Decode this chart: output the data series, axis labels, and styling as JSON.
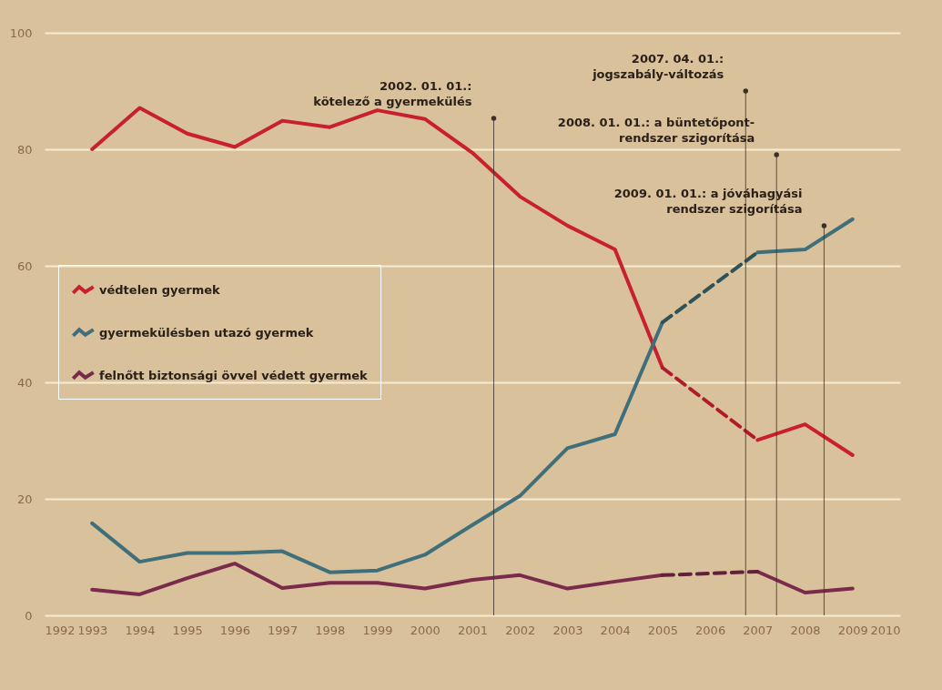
{
  "chart_data": {
    "type": "line",
    "x": [
      1993,
      1994,
      1995,
      1996,
      1997,
      1998,
      1999,
      2000,
      2001,
      2002,
      2003,
      2004,
      2005,
      2006,
      2007,
      2008,
      2009
    ],
    "series": [
      {
        "name": "védtelen gyermek",
        "color": "#c8202f",
        "line_style": "solid",
        "values": [
          80,
          87.1,
          82.7,
          80.4,
          84.9,
          83.8,
          86.7,
          85.2,
          79.4,
          71.9,
          66.9,
          62.8,
          42.5,
          null,
          30.1,
          32.8,
          27.5
        ]
      },
      {
        "name": "gyermekülésben utazó gyermek",
        "color": "#3f6f7a",
        "line_style": "solid",
        "values": [
          15.8,
          9.2,
          10.7,
          10.7,
          11,
          7.4,
          7.7,
          10.4,
          15.5,
          20.5,
          28.7,
          31.1,
          50.3,
          null,
          62.3,
          62.8,
          68
        ]
      },
      {
        "name": "felnőtt biztonsági övvel védett gyermek",
        "color": "#7a2a4a",
        "line_style": "solid",
        "values": [
          4.4,
          3.6,
          6.4,
          8.9,
          4.7,
          5.6,
          5.6,
          4.6,
          6.1,
          6.9,
          4.6,
          5.8,
          6.9,
          null,
          7.5,
          3.9,
          4.6
        ]
      },
      {
        "type": "line",
        "color": "#b01a2a",
        "line_style": "dashed",
        "values": [
          null,
          null,
          null,
          null,
          null,
          null,
          null,
          null,
          null,
          null,
          null,
          null,
          42.5,
          null,
          30.1,
          null,
          null
        ]
      },
      {
        "type": "line",
        "color": "#2f5259",
        "line_style": "dashed",
        "values": [
          null,
          null,
          null,
          null,
          null,
          null,
          null,
          null,
          null,
          null,
          null,
          null,
          50.3,
          null,
          62.3,
          null,
          null
        ]
      },
      {
        "type": "line",
        "color": "#62203b",
        "line_style": "dashed",
        "values": [
          null,
          null,
          null,
          null,
          null,
          null,
          null,
          null,
          null,
          null,
          null,
          null,
          6.9,
          null,
          7.5,
          null,
          null
        ]
      }
    ],
    "xlim": [
      1992,
      2010
    ],
    "xticks": [
      1992,
      1993,
      1994,
      1995,
      1996,
      1997,
      1998,
      1999,
      2000,
      2001,
      2002,
      2003,
      2004,
      2005,
      2006,
      2007,
      2008,
      2009,
      2010
    ],
    "ylim": [
      0,
      100
    ],
    "yticks": [
      0,
      20,
      40,
      60,
      80,
      100
    ],
    "grid": "y",
    "legend": "left",
    "marker": "none",
    "ref_lines": [
      {
        "axis": "x",
        "value": 2001.45,
        "label": "2002. 01. 01.:\nkötelező a gyermekülés",
        "color": "#3a3028"
      },
      {
        "axis": "x",
        "value": 2006.75,
        "label": "2007. 04. 01.:\njogszabály-változás",
        "color": "#3a3028"
      },
      {
        "axis": "x",
        "value": 2007.4,
        "label": "2008. 01. 01.: a büntetőpont-\nrendszer szigorítása",
        "color": "#3a3028"
      },
      {
        "axis": "x",
        "value": 2008.4,
        "label": "2009. 01. 01.: a jóváhagyási\nrendszer szigorítása",
        "color": "#3a3028"
      }
    ]
  }
}
